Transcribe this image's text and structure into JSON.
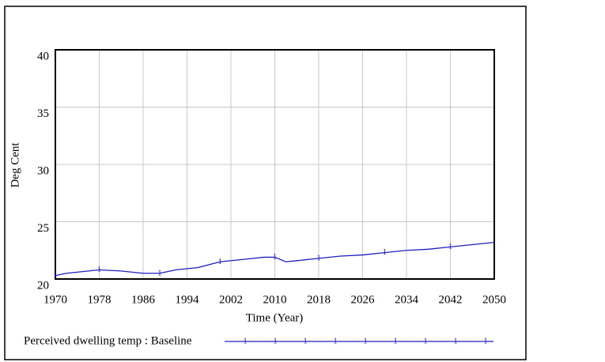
{
  "chart_data": {
    "type": "line",
    "x_label": "Time (Year)",
    "y_label": "Deg Cent",
    "x": [
      1970,
      1972,
      1976,
      1978,
      1982,
      1986,
      1989,
      1992,
      1996,
      2000,
      2004,
      2008,
      2010,
      2012,
      2014,
      2018,
      2022,
      2026,
      2030,
      2034,
      2038,
      2042,
      2046,
      2050
    ],
    "series": [
      {
        "name": "Perceived dwelling temp : Baseline",
        "color": "#1f1fbf",
        "marker": "1",
        "values": [
          20.3,
          20.5,
          20.7,
          20.8,
          20.7,
          20.5,
          20.5,
          20.8,
          21.0,
          21.5,
          21.7,
          21.9,
          21.9,
          21.5,
          21.6,
          21.8,
          22.0,
          22.1,
          22.3,
          22.5,
          22.6,
          22.8,
          23.0,
          23.2
        ]
      }
    ],
    "xlim": [
      1970,
      2050
    ],
    "xticks": [
      1970,
      1978,
      1986,
      1994,
      2002,
      2010,
      2018,
      2026,
      2034,
      2042,
      2050
    ],
    "ylim": [
      20,
      40
    ],
    "yticks": [
      20,
      25,
      30,
      35,
      40
    ],
    "grid": true
  }
}
